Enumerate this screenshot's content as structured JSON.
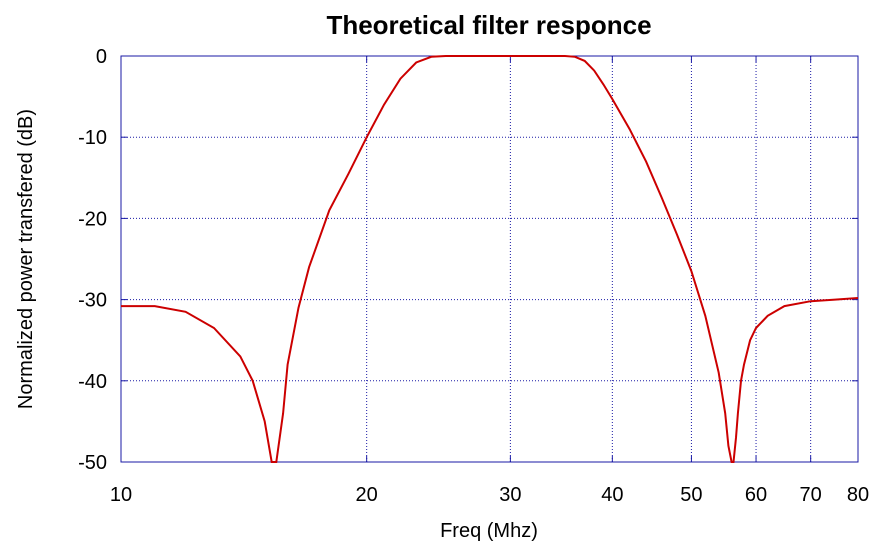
{
  "chart_data": {
    "type": "line",
    "title": "Theoretical filter responce",
    "xlabel": "Freq (Mhz)",
    "ylabel": "Normalized power transfered (dB)",
    "xscale": "log",
    "xlim": [
      10,
      80
    ],
    "ylim": [
      -50,
      0
    ],
    "xticks": [
      10,
      20,
      30,
      40,
      50,
      60,
      70,
      80
    ],
    "yticks": [
      0,
      -10,
      -20,
      -30,
      -40,
      -50
    ],
    "grid": true,
    "series": [
      {
        "color": "#cc0000",
        "x": [
          10,
          11,
          12,
          13,
          14,
          14.5,
          15,
          15.3,
          15.5,
          15.8,
          16,
          16.5,
          17,
          18,
          19,
          20,
          21,
          22,
          23,
          24,
          25,
          30,
          35,
          36,
          37,
          38,
          39,
          40,
          42,
          44,
          46,
          48,
          50,
          52,
          54,
          55,
          55.5,
          56,
          56.3,
          56.7,
          57,
          57.5,
          58,
          59,
          60,
          62,
          65,
          70,
          75,
          80
        ],
        "y": [
          -30.8,
          -30.8,
          -31.5,
          -33.5,
          -37,
          -40,
          -45,
          -50,
          -50,
          -44,
          -38,
          -31,
          -26,
          -19,
          -14.5,
          -10,
          -6,
          -2.8,
          -0.8,
          -0.1,
          0,
          0,
          0,
          -0.1,
          -0.6,
          -1.8,
          -3.5,
          -5.3,
          -9,
          -13,
          -17.5,
          -22,
          -26.5,
          -32,
          -39,
          -44,
          -48,
          -50,
          -50,
          -47,
          -44,
          -40,
          -38,
          -35,
          -33.5,
          -32,
          -30.8,
          -30.2,
          -30,
          -29.8
        ]
      }
    ]
  }
}
